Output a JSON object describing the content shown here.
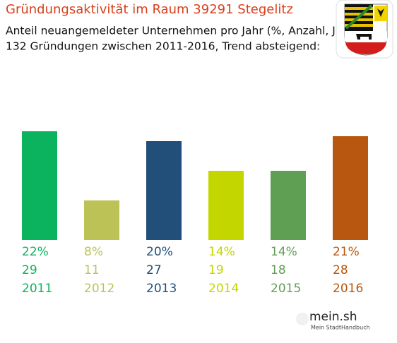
{
  "chart_data": {
    "type": "bar",
    "title": "Gründungsaktivität im Raum 39291 Stegelitz",
    "subtitle": [
      "Anteil neuangemeldeter Unternehmen pro Jahr (%, Anzahl, Jahr)",
      "132 Gründungen zwischen 2011-2016, Trend absteigend:"
    ],
    "categories": [
      "2011",
      "2012",
      "2013",
      "2014",
      "2015",
      "2016"
    ],
    "values": [
      22,
      8,
      20,
      14,
      14,
      21
    ],
    "value_labels": [
      "22%",
      "8%",
      "20%",
      "14%",
      "14%",
      "21%"
    ],
    "counts": [
      29,
      11,
      27,
      19,
      18,
      28
    ],
    "colors": [
      "#0bb35e",
      "#bdc257",
      "#224e7a",
      "#c3d600",
      "#5f9f53",
      "#b8570f"
    ]
  },
  "branding": {
    "name": "mein.sh",
    "tagline": "Mein StadtHandbuch"
  }
}
